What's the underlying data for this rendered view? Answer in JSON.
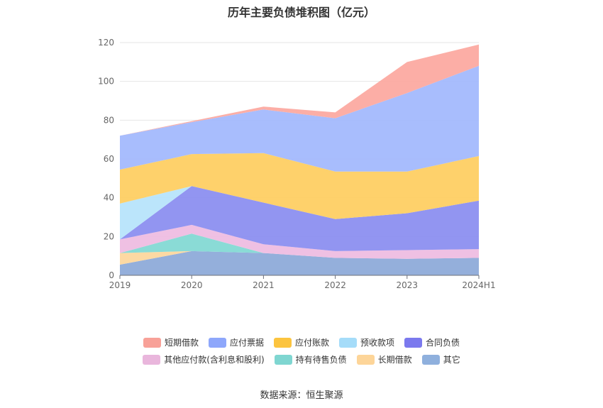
{
  "chart_data": {
    "type": "area",
    "title": "历年主要负债堆积图（亿元）",
    "categories": [
      "2019",
      "2020",
      "2021",
      "2022",
      "2023",
      "2024H1"
    ],
    "ylim": [
      0,
      120
    ],
    "yticks": [
      0,
      20,
      40,
      60,
      80,
      100,
      120
    ],
    "stacked": true,
    "series": [
      {
        "name": "其它",
        "color": "#8eabd9",
        "values": [
          5.5,
          12.5,
          11.5,
          9,
          8.5,
          9
        ]
      },
      {
        "name": "长期借款",
        "color": "#fdd79e",
        "values": [
          6,
          0,
          0,
          0,
          0,
          0
        ]
      },
      {
        "name": "持有待售负债",
        "color": "#84d9d4",
        "values": [
          0,
          9,
          0,
          0,
          0,
          0
        ]
      },
      {
        "name": "其他应付款(含利息和股利)",
        "color": "#eebde2",
        "values": [
          7,
          4.5,
          4.5,
          3.5,
          4.5,
          4.5
        ]
      },
      {
        "name": "合同负债",
        "color": "#8c8ff0",
        "values": [
          0,
          20,
          21.5,
          16.5,
          19,
          25
        ]
      },
      {
        "name": "预收款项",
        "color": "#b7e4fb",
        "values": [
          18.5,
          0,
          0,
          0,
          0,
          0
        ]
      },
      {
        "name": "应付账款",
        "color": "#fecf63",
        "values": [
          17.5,
          16.5,
          25.5,
          24.5,
          21.5,
          23
        ]
      },
      {
        "name": "应付票据",
        "color": "#a3b9fd",
        "values": [
          17.5,
          16.5,
          22.5,
          27.5,
          40.5,
          46.5
        ]
      },
      {
        "name": "短期借款",
        "color": "#fcaaa1",
        "values": [
          0,
          0.5,
          1.5,
          3,
          16,
          11
        ]
      }
    ],
    "legend_rows": [
      [
        "短期借款",
        "应付票据",
        "应付账款",
        "预收款项",
        "合同负债"
      ],
      [
        "其他应付款(含利息和股利)",
        "持有待售负债",
        "长期借款",
        "其它"
      ]
    ],
    "legend_colors": {
      "短期借款": "#f8a198",
      "应付票据": "#8ea7fb",
      "应付账款": "#fcc43f",
      "预收款项": "#a5dcf9",
      "合同负债": "#7b79ee",
      "其他应付款(含利息和股利)": "#e9b6dc",
      "持有待售负债": "#7fd6d1",
      "长期借款": "#fdd599",
      "其它": "#8fb0dd"
    }
  },
  "source": "数据来源：恒生聚源"
}
